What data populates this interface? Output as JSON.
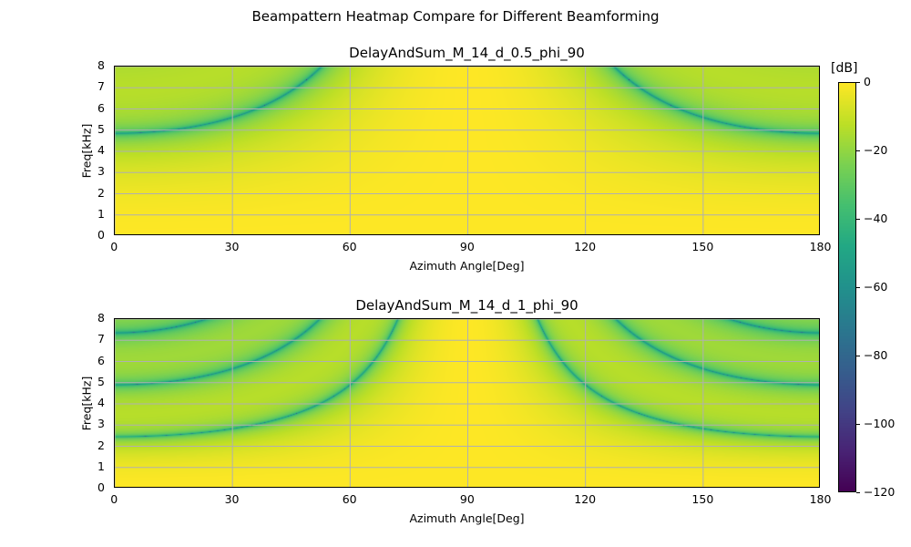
{
  "figure_title": "Beampattern Heatmap Compare for Different Beamforming",
  "colorbar": {
    "label": "[dB]",
    "colormap": "viridis",
    "range": [
      -120,
      0
    ],
    "ticks": [
      "0",
      "−20",
      "−40",
      "−60",
      "−80",
      "−100",
      "−120"
    ]
  },
  "chart_data": [
    {
      "type": "heatmap",
      "title": "DelayAndSum_M_14_d_0.5_phi_90",
      "xlabel": "Azimuth Angle[Deg]",
      "ylabel": "Freq[kHz]",
      "xlim": [
        0,
        180
      ],
      "ylim": [
        0,
        8
      ],
      "xticks": [
        "0",
        "30",
        "60",
        "90",
        "120",
        "150",
        "180"
      ],
      "yticks": [
        "0",
        "1",
        "2",
        "3",
        "4",
        "5",
        "6",
        "7",
        "8"
      ],
      "grid": true,
      "array": {
        "M": 14,
        "d": 0.5,
        "phi": 90
      },
      "first_null_freqs_khz_at_0deg": [
        4.85
      ]
    },
    {
      "type": "heatmap",
      "title": "DelayAndSum_M_14_d_1_phi_90",
      "xlabel": "Azimuth Angle[Deg]",
      "ylabel": "Freq[kHz]",
      "xlim": [
        0,
        180
      ],
      "ylim": [
        0,
        8
      ],
      "xticks": [
        "0",
        "30",
        "60",
        "90",
        "120",
        "150",
        "180"
      ],
      "yticks": [
        "0",
        "1",
        "2",
        "3",
        "4",
        "5",
        "6",
        "7",
        "8"
      ],
      "grid": true,
      "array": {
        "M": 14,
        "d": 1,
        "phi": 90
      },
      "first_null_freqs_khz_at_0deg": [
        2.45,
        4.9,
        7.3
      ]
    }
  ]
}
